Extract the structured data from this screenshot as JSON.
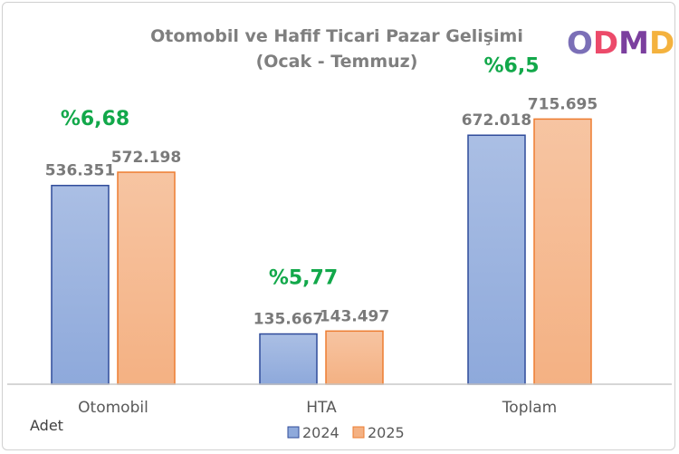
{
  "logo": {
    "text": "ODMD",
    "letters": [
      "O",
      "D",
      "M",
      "D"
    ],
    "colors": [
      "#7b6fb7",
      "#ec4a6a",
      "#7b3f9e",
      "#f4b23e"
    ]
  },
  "chart_data": {
    "type": "bar",
    "title": "Otomobil ve Hafif Ticari Pazar Gelişimi",
    "subtitle": "(Ocak - Temmuz)",
    "unit_label": "Adet",
    "categories": [
      "Otomobil",
      "HTA",
      "Toplam"
    ],
    "series": [
      {
        "name": "2024",
        "values": [
          536351,
          135667,
          672018
        ],
        "labels": [
          "536.351",
          "135.667",
          "672.018"
        ],
        "color": "#8ea9db",
        "border": "#2f4b9a"
      },
      {
        "name": "2025",
        "values": [
          572198,
          143497,
          715695
        ],
        "labels": [
          "572.198",
          "143.497",
          "715.695"
        ],
        "color": "#f4b183",
        "border": "#ed7d31"
      }
    ],
    "growth_labels": [
      "%6,68",
      "%5,77",
      "%6,5"
    ],
    "growth_color": "#12a84a",
    "ylim": [
      0,
      900000
    ],
    "grid": false,
    "legend_position": "bottom"
  }
}
